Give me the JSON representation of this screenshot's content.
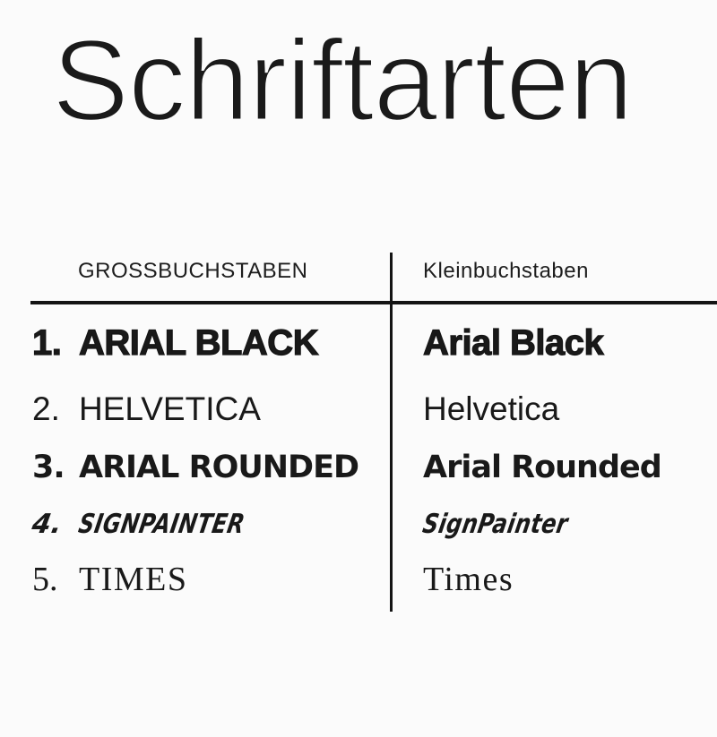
{
  "title": "Schriftarten",
  "table": {
    "headers": {
      "left": "GROSSBUCHSTABEN",
      "right": "Kleinbuchstaben"
    },
    "rows": [
      {
        "num": "1.",
        "upper": "ARIAL BLACK",
        "lower": "Arial Black"
      },
      {
        "num": "2.",
        "upper": "HELVETICA",
        "lower": "Helvetica"
      },
      {
        "num": "3.",
        "upper": "ARIAL ROUNDED",
        "lower": "Arial Rounded"
      },
      {
        "num": "4.",
        "upper": "SIGNPAINTER",
        "lower": "SignPainter"
      },
      {
        "num": "5.",
        "upper": "TIMES",
        "lower": "Times"
      }
    ]
  },
  "colors": {
    "background": "#fbfbfb",
    "text": "#191919",
    "line": "#141414"
  }
}
